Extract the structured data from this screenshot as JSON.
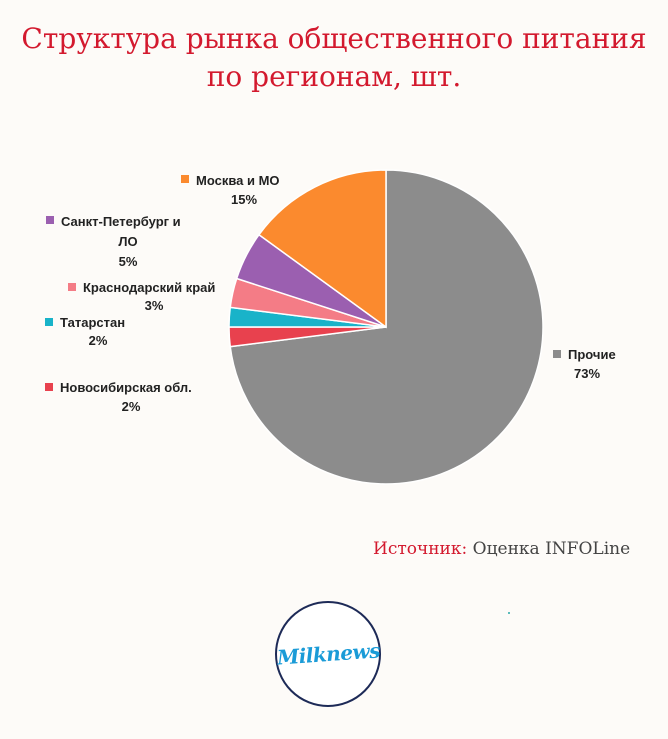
{
  "title_line1": "Структура рынка общественного питания",
  "title_line2": "по регионам, шт.",
  "source": {
    "label": "Источник:",
    "value": "Оценка INFOLine"
  },
  "logo": {
    "text": "Milknews"
  },
  "chart_data": {
    "type": "pie",
    "title": "Структура рынка общественного питания по регионам, шт.",
    "slices": [
      {
        "name": "Прочие",
        "value": 73,
        "label": "73%",
        "color": "#8c8c8c"
      },
      {
        "name": "Новосибирская обл.",
        "value": 2,
        "label": "2%",
        "color": "#e8414e"
      },
      {
        "name": "Татарстан",
        "value": 2,
        "label": "2%",
        "color": "#19b3c9"
      },
      {
        "name": "Краснодарский край",
        "value": 3,
        "label": "3%",
        "color": "#f47c86"
      },
      {
        "name": "Санкт-Петербург и ЛО",
        "value": 5,
        "label": "5%",
        "color": "#9b5fb0"
      },
      {
        "name": "Москва и МО",
        "value": 15,
        "label": "15%",
        "color": "#fb8a2e"
      }
    ],
    "legend_placement": "around pie"
  }
}
